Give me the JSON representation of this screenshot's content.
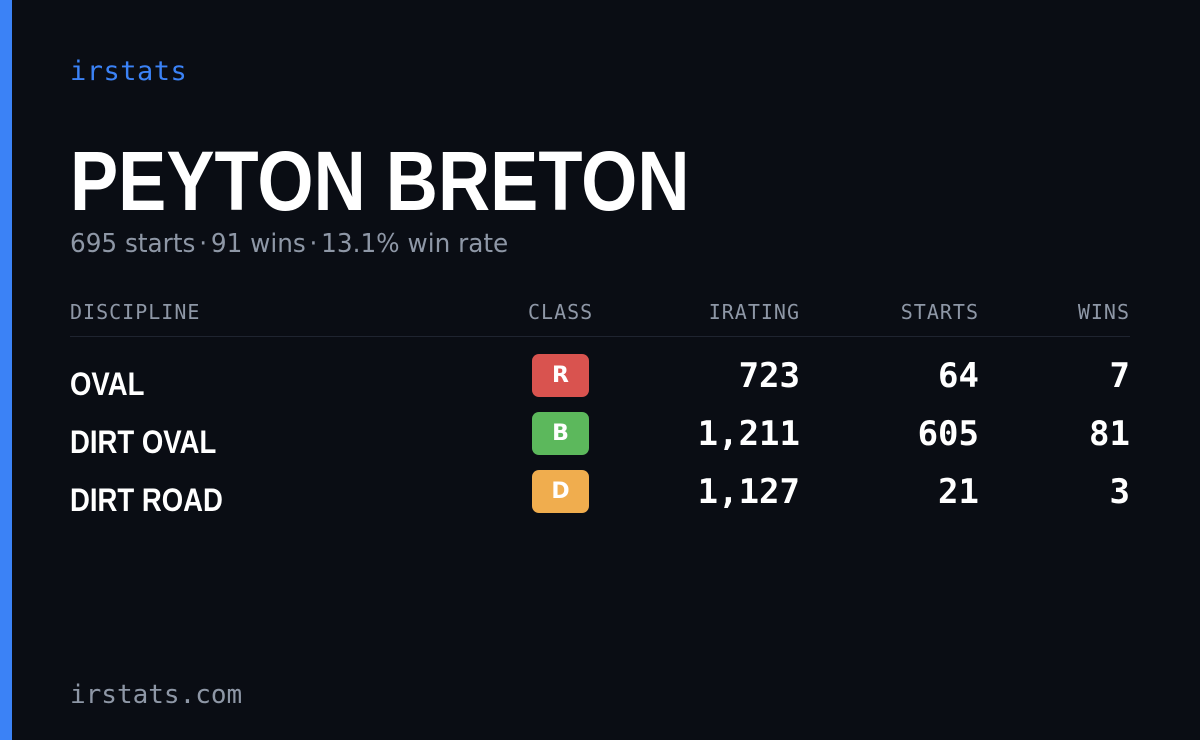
{
  "brand": "irstats",
  "player": {
    "name": "PEYTON BRETON",
    "starts": "695 starts",
    "wins": "91 wins",
    "win_rate": "13.1% win rate",
    "separator": "·"
  },
  "table": {
    "headers": {
      "discipline": "DISCIPLINE",
      "class": "CLASS",
      "irating": "IRATING",
      "starts": "STARTS",
      "wins": "WINS"
    },
    "rows": [
      {
        "discipline": "OVAL",
        "class": "R",
        "class_color": "#d9534f",
        "irating": "723",
        "starts": "64",
        "wins": "7"
      },
      {
        "discipline": "DIRT OVAL",
        "class": "B",
        "class_color": "#5cb85c",
        "irating": "1,211",
        "starts": "605",
        "wins": "81"
      },
      {
        "discipline": "DIRT ROAD",
        "class": "D",
        "class_color": "#f0ad4e",
        "irating": "1,127",
        "starts": "21",
        "wins": "3"
      }
    ]
  },
  "footer": "irstats.com",
  "colors": {
    "accent": "#3b82f6",
    "background": "#0a0d14",
    "muted": "#8e97a6"
  }
}
